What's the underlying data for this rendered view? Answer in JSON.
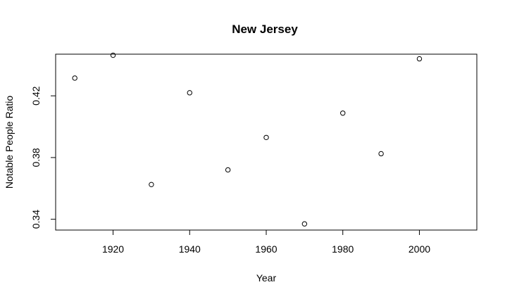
{
  "chart_data": {
    "type": "scatter",
    "title": "New Jersey",
    "xlabel": "Year",
    "ylabel": "Notable People Ratio",
    "xlim": [
      1905,
      2015
    ],
    "ylim": [
      0.333,
      0.447
    ],
    "xticks": [
      1920,
      1940,
      1960,
      1980,
      2000
    ],
    "yticks": [
      0.34,
      0.38,
      0.42
    ],
    "ytick_labels": [
      "0.34",
      "0.38",
      "0.42"
    ],
    "grid": false,
    "marker": "open-circle",
    "x": [
      1910,
      1920,
      1930,
      1940,
      1950,
      1960,
      1970,
      1980,
      1990,
      2000
    ],
    "y": [
      0.4315,
      0.4463,
      0.3625,
      0.422,
      0.372,
      0.393,
      0.337,
      0.4088,
      0.3825,
      0.444
    ]
  }
}
